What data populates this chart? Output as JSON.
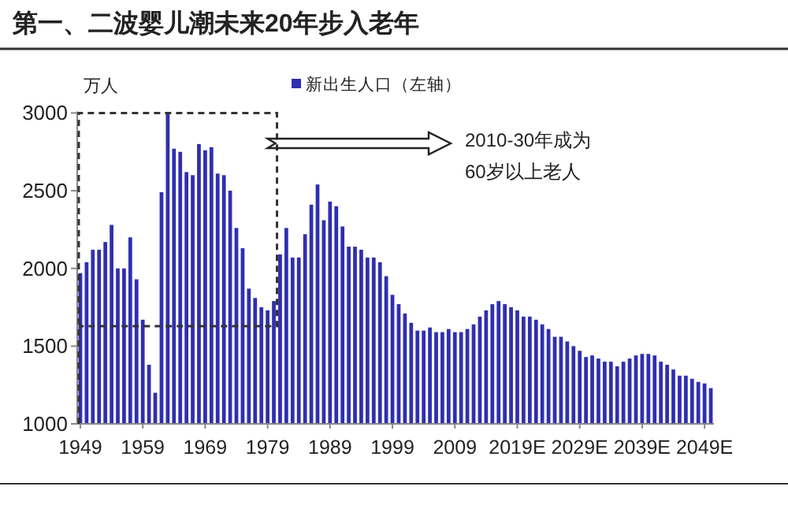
{
  "chart_data": {
    "type": "bar",
    "title": "第一、二波婴儿潮未来20年步入老年",
    "ylabel": "万人",
    "categories": [
      "1949",
      null,
      null,
      null,
      null,
      null,
      null,
      null,
      null,
      null,
      "1959",
      null,
      null,
      null,
      null,
      null,
      null,
      null,
      null,
      null,
      "1969",
      null,
      null,
      null,
      null,
      null,
      null,
      null,
      null,
      null,
      "1979",
      null,
      null,
      null,
      null,
      null,
      null,
      null,
      null,
      null,
      "1989",
      null,
      null,
      null,
      null,
      null,
      null,
      null,
      null,
      null,
      "1999",
      null,
      null,
      null,
      null,
      null,
      null,
      null,
      null,
      null,
      "2009",
      null,
      null,
      null,
      null,
      null,
      null,
      null,
      null,
      null,
      "2019E",
      null,
      null,
      null,
      null,
      null,
      null,
      null,
      null,
      null,
      "2029E",
      null,
      null,
      null,
      null,
      null,
      null,
      null,
      null,
      null,
      "2039E",
      null,
      null,
      null,
      null,
      null,
      null,
      null,
      null,
      null,
      "2049E",
      null
    ],
    "series": [
      {
        "name": "新出生人口（左轴）",
        "color": "#2f2fb0",
        "values": [
          1970,
          2040,
          2120,
          2120,
          2170,
          2280,
          2000,
          2000,
          2200,
          1930,
          1670,
          1380,
          1200,
          2490,
          3000,
          2770,
          2750,
          2620,
          2600,
          2800,
          2760,
          2780,
          2610,
          2600,
          2500,
          2260,
          2130,
          1870,
          1810,
          1750,
          1730,
          1790,
          2090,
          2260,
          2070,
          2070,
          2220,
          2410,
          2540,
          2310,
          2430,
          2400,
          2270,
          2140,
          2140,
          2120,
          2070,
          2070,
          2040,
          1950,
          1830,
          1770,
          1710,
          1650,
          1600,
          1600,
          1620,
          1590,
          1590,
          1610,
          1590,
          1590,
          1610,
          1640,
          1690,
          1730,
          1770,
          1790,
          1770,
          1750,
          1730,
          1690,
          1690,
          1670,
          1640,
          1610,
          1560,
          1560,
          1530,
          1500,
          1470,
          1430,
          1440,
          1420,
          1400,
          1400,
          1370,
          1400,
          1420,
          1440,
          1450,
          1450,
          1440,
          1400,
          1380,
          1350,
          1310,
          1310,
          1290,
          1270,
          1260,
          1230
        ]
      }
    ],
    "ylim": [
      1000,
      3000
    ],
    "yticks": [
      1000,
      1500,
      2000,
      2500,
      3000
    ],
    "grid": false,
    "legend": "top",
    "annotations": [
      "2010-30年成为\n60岁以上老人"
    ]
  }
}
